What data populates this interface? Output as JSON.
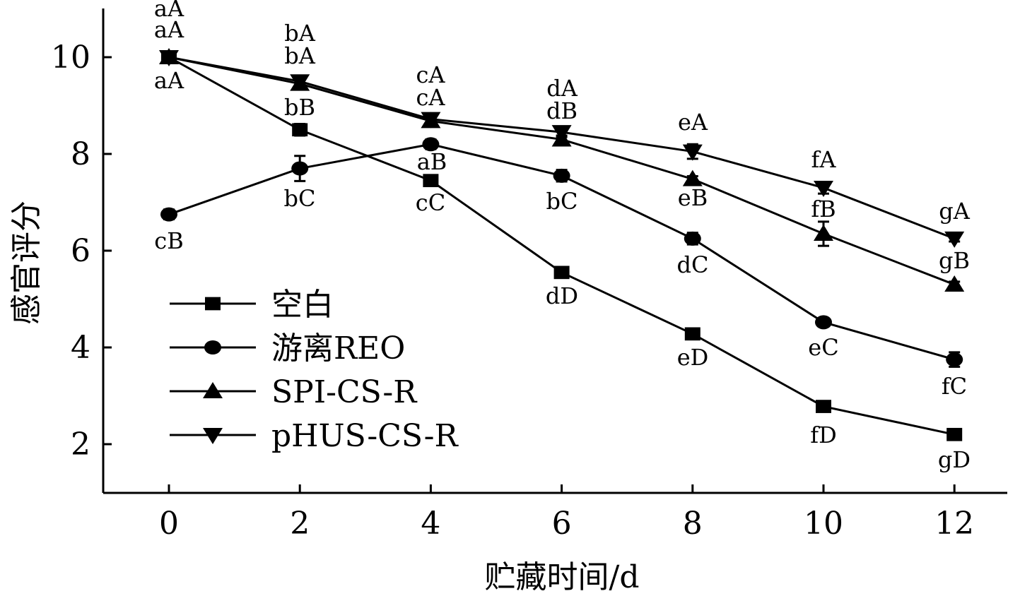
{
  "chart_data": {
    "type": "line",
    "title": "",
    "xlabel": "贮藏时间/d",
    "ylabel": "感官评分",
    "x": [
      0,
      2,
      4,
      6,
      8,
      10,
      12
    ],
    "xlim": [
      -1,
      12.8
    ],
    "ylim": [
      1,
      11
    ],
    "x_ticks": [
      0,
      2,
      4,
      6,
      8,
      10,
      12
    ],
    "y_ticks": [
      2,
      4,
      6,
      8,
      10
    ],
    "grid": false,
    "legend_position": "bottom-left",
    "series": [
      {
        "name": "空白",
        "marker": "square",
        "values": [
          10.0,
          8.5,
          7.45,
          5.55,
          4.28,
          2.78,
          2.2
        ],
        "errors": [
          0.05,
          0.12,
          0.08,
          0.06,
          0.06,
          0.1,
          0.1
        ],
        "labels": [
          "",
          "bB",
          "cC",
          "dD",
          "eD",
          "fD",
          "gD"
        ]
      },
      {
        "name": "游离REO",
        "marker": "circle",
        "values": [
          6.75,
          7.7,
          8.2,
          7.55,
          6.25,
          4.52,
          3.75
        ],
        "errors": [
          0.1,
          0.26,
          0.1,
          0.12,
          0.12,
          0.06,
          0.15
        ],
        "labels": [
          "cB",
          "bC",
          "aB",
          "bC",
          "dC",
          "eC",
          "fC"
        ]
      },
      {
        "name": "SPI-CS-R",
        "marker": "triangle-up",
        "values": [
          10.0,
          9.45,
          8.68,
          8.3,
          7.48,
          6.35,
          5.3
        ],
        "errors": [
          0.05,
          0.12,
          0.08,
          0.08,
          0.06,
          0.25,
          0.06
        ],
        "labels": [
          "aA",
          "bA",
          "cA",
          "dB",
          "eB",
          "fB",
          "gB"
        ]
      },
      {
        "name": "pHUS-CS-R",
        "marker": "triangle-down",
        "values": [
          10.0,
          9.5,
          8.72,
          8.45,
          8.05,
          7.3,
          6.25
        ],
        "errors": [
          0.05,
          0.12,
          0.1,
          0.1,
          0.15,
          0.12,
          0.06
        ],
        "labels": [
          "aA",
          "bA",
          "cA",
          "dA",
          "eA",
          "fA",
          "gA"
        ]
      }
    ],
    "extra_labels": [
      {
        "x": 0,
        "text": "aA",
        "series": 0
      }
    ]
  }
}
